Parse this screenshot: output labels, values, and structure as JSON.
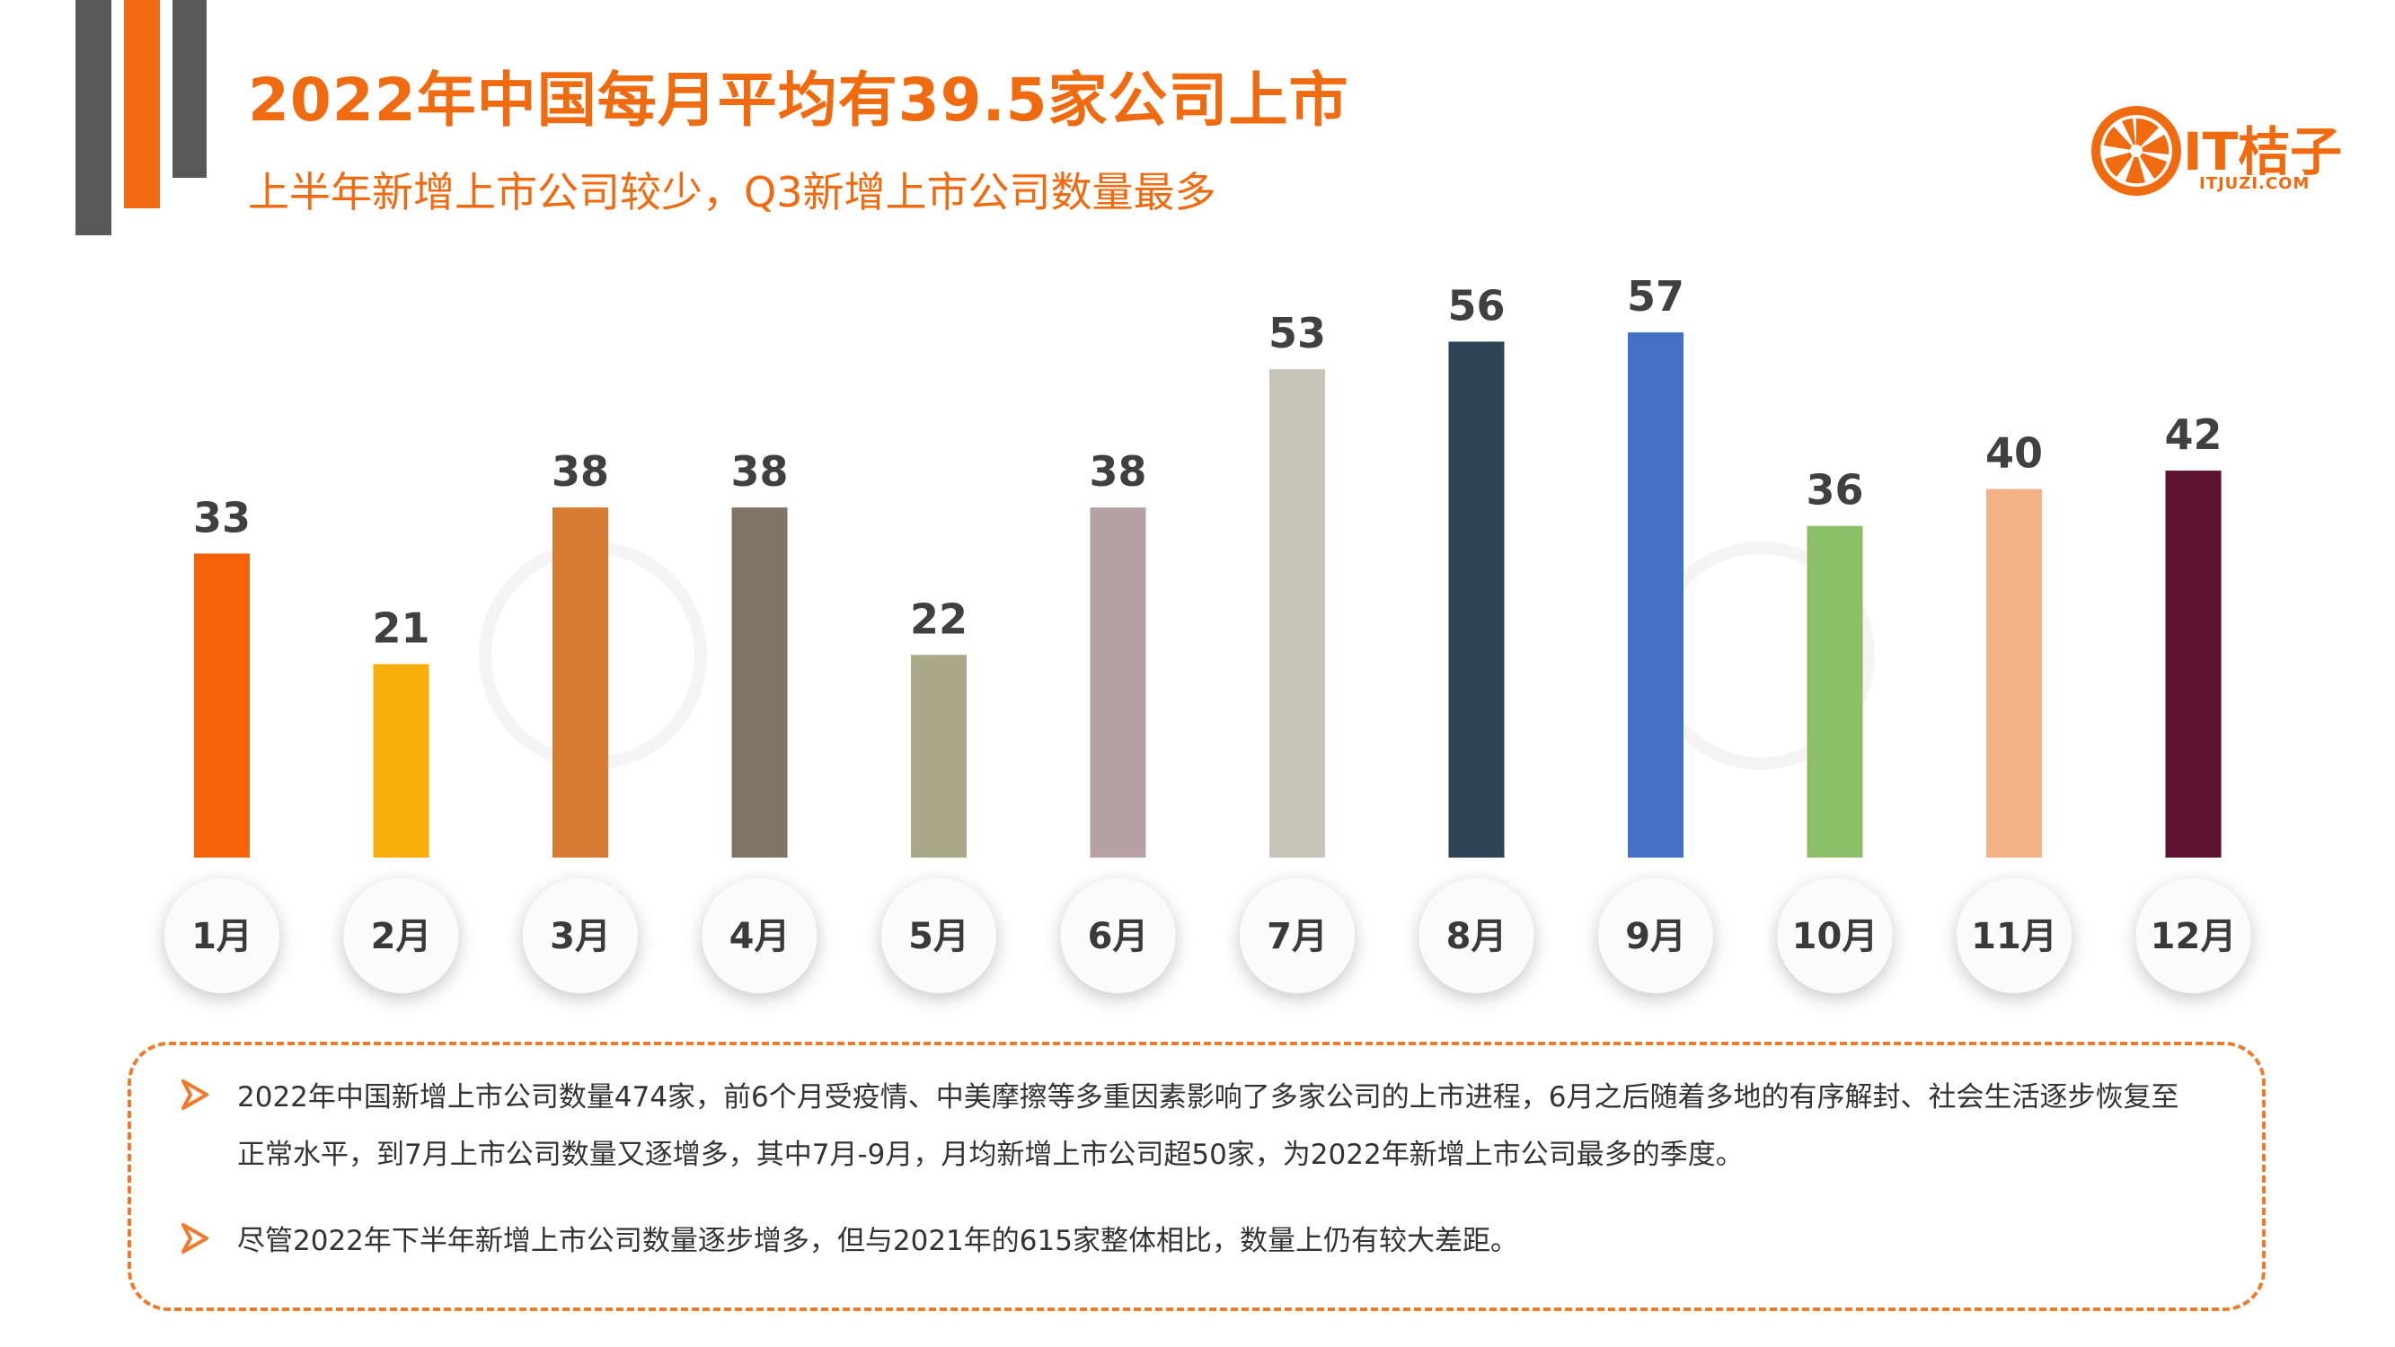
{
  "header": {
    "title": "2022年中国每月平均有39.5家公司上市",
    "subtitle": "上半年新增上市公司较少，Q3新增上市公司数量最多"
  },
  "logo": {
    "name": "IT桔子",
    "url": "ITJUZI.COM",
    "color": "#f06a10"
  },
  "chart_data": {
    "type": "bar",
    "categories": [
      "1月",
      "2月",
      "3月",
      "4月",
      "5月",
      "6月",
      "7月",
      "8月",
      "9月",
      "10月",
      "11月",
      "12月"
    ],
    "values": [
      33,
      21,
      38,
      38,
      22,
      38,
      53,
      56,
      57,
      36,
      40,
      42
    ],
    "colors": [
      "#f5620a",
      "#f8ae0a",
      "#d67a34",
      "#7f7466",
      "#aaa888",
      "#b5a0a4",
      "#c8c4ba",
      "#2e4457",
      "#4471c4",
      "#8cc068",
      "#f3b385",
      "#5e1232"
    ],
    "ylim": [
      0,
      60
    ],
    "data_labels": true,
    "grid": false,
    "legend": "none"
  },
  "notes": {
    "items": [
      "2022年中国新增上市公司数量474家，前6个月受疫情、中美摩擦等多重因素影响了多家公司的上市进程，6月之后随着多地的有序解封、社会生活逐步恢复至正常水平，到7月上市公司数量又逐增多，其中7月-9月，月均新增上市公司超50家，为2022年新增上市公司最多的季度。",
      "尽管2022年下半年新增上市公司数量逐步增多，但与2021年的615家整体相比，数量上仍有较大差距。"
    ],
    "accent": "#ee7a2c"
  }
}
